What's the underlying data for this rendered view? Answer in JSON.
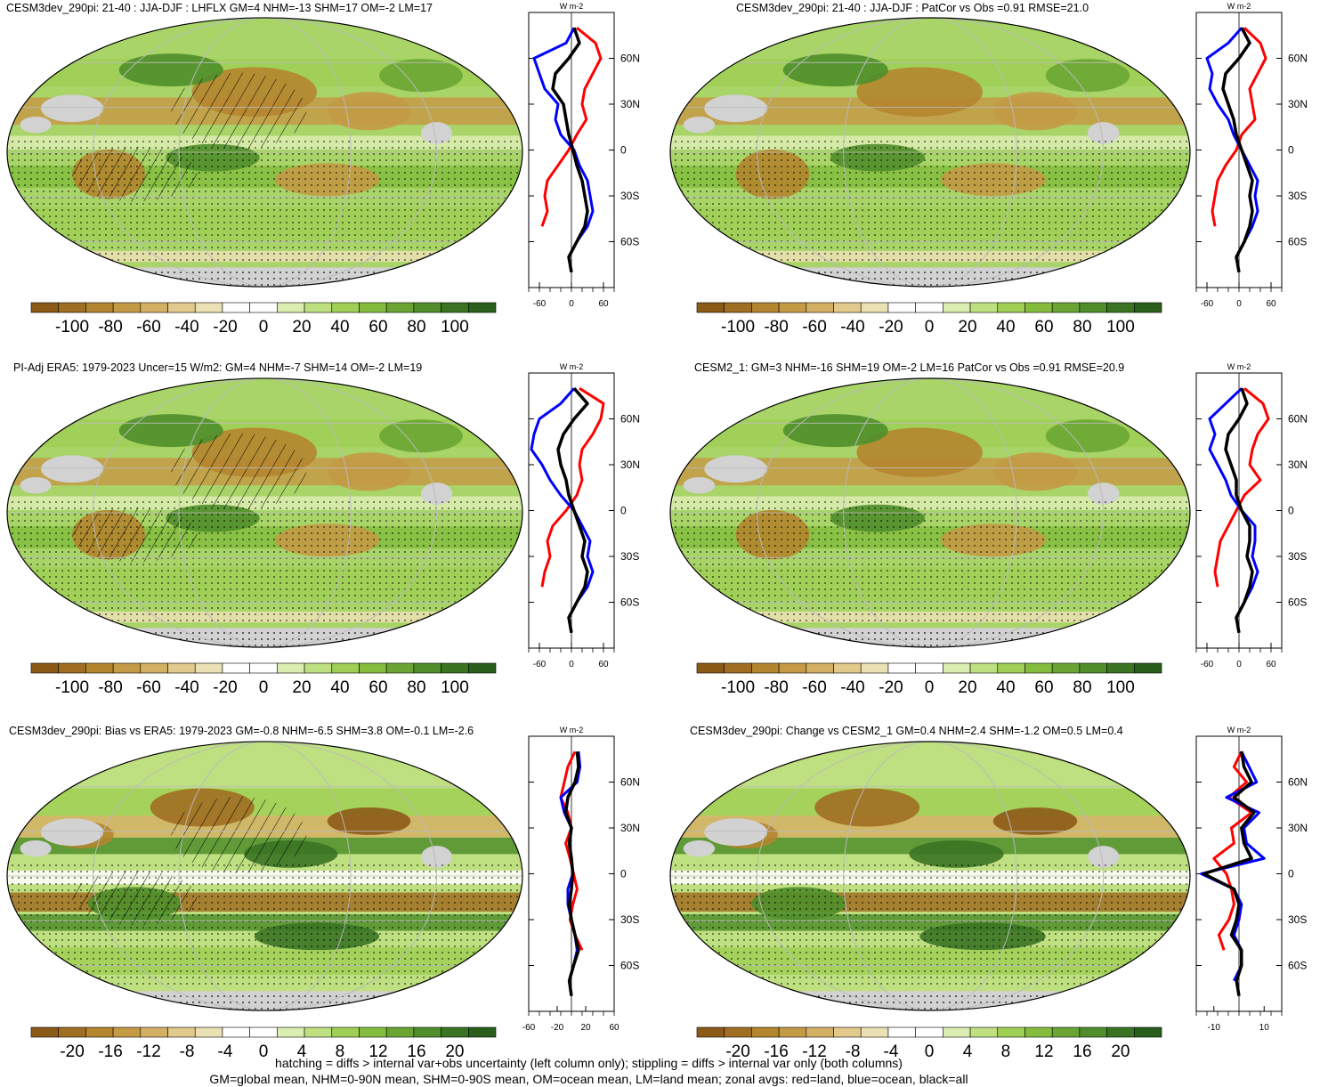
{
  "panels": [
    {
      "id": "p1",
      "title": "CESM3dev_290pi: 21-40 : JJA-DJF : LHFLX GM=4 NHM=-13 SHM=17 OM=-2 LM=17",
      "map_style": "field",
      "hatching": true,
      "colorbar_labels": [
        "-100",
        "-80",
        "-60",
        "-40",
        "-20",
        "0",
        "20",
        "40",
        "60",
        "80",
        "100"
      ]
    },
    {
      "id": "p2",
      "title": "CESM3dev_290pi: 21-40 : JJA-DJF : PatCor vs Obs =0.91 RMSE=21.0",
      "map_style": "field",
      "hatching": false,
      "colorbar_labels": [
        "-100",
        "-80",
        "-60",
        "-40",
        "-20",
        "0",
        "20",
        "40",
        "60",
        "80",
        "100"
      ]
    },
    {
      "id": "p3",
      "title": "PI-Adj ERA5: 1979-2023 Uncer=15 W/m2: GM=4 NHM=-7 SHM=14 OM=-2 LM=19",
      "map_style": "field",
      "hatching": true,
      "colorbar_labels": [
        "-100",
        "-80",
        "-60",
        "-40",
        "-20",
        "0",
        "20",
        "40",
        "60",
        "80",
        "100"
      ]
    },
    {
      "id": "p4",
      "title": "CESM2_1: GM=3 NHM=-16 SHM=19 OM=-2 LM=16 PatCor vs Obs =0.91 RMSE=20.9",
      "map_style": "field",
      "hatching": false,
      "colorbar_labels": [
        "-100",
        "-80",
        "-60",
        "-40",
        "-20",
        "0",
        "20",
        "40",
        "60",
        "80",
        "100"
      ]
    },
    {
      "id": "p5",
      "title": "CESM3dev_290pi: Bias vs ERA5: 1979-2023 GM=-0.8 NHM=-6.5 SHM=3.8 OM=-0.1 LM=-2.6",
      "map_style": "diff",
      "hatching": true,
      "colorbar_labels": [
        "-20",
        "-16",
        "-12",
        "-8",
        "-4",
        "0",
        "4",
        "8",
        "12",
        "16",
        "20"
      ]
    },
    {
      "id": "p6",
      "title": "CESM3dev_290pi: Change vs CESM2_1 GM=0.4 NHM=2.4 SHM=-1.2 OM=0.5 LM=0.4",
      "map_style": "diff",
      "hatching": false,
      "colorbar_labels": [
        "-20",
        "-16",
        "-12",
        "-8",
        "-4",
        "0",
        "4",
        "8",
        "12",
        "16",
        "20"
      ]
    }
  ],
  "colors": {
    "palette": [
      "#8c5a17",
      "#a06e22",
      "#b4852f",
      "#c49a45",
      "#d4b065",
      "#e2c98c",
      "#ece0b5",
      "#ffffff",
      "#ffffff",
      "#dcedb2",
      "#bfe080",
      "#9fcf55",
      "#84bd3e",
      "#6aa534",
      "#4f8e2b",
      "#3a7423",
      "#2a5e1c"
    ],
    "land": "#d2d2d2",
    "land_series": "#ff0000",
    "ocean_series": "#0000ff",
    "all_series": "#000000"
  },
  "chart_data": [
    {
      "type": "line",
      "panel": "p1",
      "units": "W m-2",
      "xlim": [
        -80,
        80
      ],
      "xticks": [
        "-60",
        "0",
        "60"
      ],
      "yticks": [
        "60N",
        "30N",
        "0",
        "30S",
        "60S"
      ],
      "latitudes": [
        80,
        70,
        60,
        50,
        40,
        30,
        20,
        10,
        0,
        -10,
        -20,
        -30,
        -40,
        -50,
        -60,
        -70,
        -80
      ],
      "series": [
        {
          "name": "land",
          "values": [
            10,
            45,
            55,
            40,
            25,
            20,
            28,
            10,
            -5,
            -25,
            -45,
            -50,
            -45,
            -55,
            null,
            -10,
            null
          ]
        },
        {
          "name": "ocean",
          "values": [
            5,
            -10,
            -70,
            -60,
            -50,
            -25,
            -30,
            -20,
            5,
            15,
            30,
            35,
            40,
            30,
            10,
            -5,
            null
          ]
        },
        {
          "name": "all",
          "values": [
            5,
            15,
            -5,
            -30,
            -35,
            -15,
            -10,
            -5,
            3,
            10,
            20,
            25,
            30,
            25,
            10,
            -5,
            0
          ]
        }
      ]
    },
    {
      "type": "line",
      "panel": "p2",
      "units": "W m-2",
      "xlim": [
        -80,
        80
      ],
      "xticks": [
        "-60",
        "0",
        "60"
      ],
      "yticks": [
        "60N",
        "30N",
        "0",
        "30S",
        "60S"
      ],
      "latitudes": [
        80,
        70,
        60,
        50,
        40,
        30,
        20,
        10,
        0,
        -10,
        -20,
        -30,
        -40,
        -50,
        -60,
        -70,
        -80
      ],
      "series": [
        {
          "name": "land",
          "values": [
            10,
            40,
            50,
            35,
            20,
            25,
            30,
            5,
            -5,
            -25,
            -40,
            -45,
            -50,
            -45,
            null,
            -10,
            null
          ]
        },
        {
          "name": "ocean",
          "values": [
            5,
            -20,
            -60,
            -50,
            -55,
            -40,
            -20,
            -10,
            5,
            20,
            35,
            30,
            35,
            25,
            10,
            -5,
            null
          ]
        },
        {
          "name": "all",
          "values": [
            5,
            20,
            0,
            -25,
            -30,
            -20,
            -10,
            -5,
            5,
            15,
            25,
            20,
            25,
            20,
            10,
            -5,
            0
          ]
        }
      ]
    },
    {
      "type": "line",
      "panel": "p3",
      "units": "W m-2",
      "xlim": [
        -80,
        80
      ],
      "xticks": [
        "-60",
        "0",
        "60"
      ],
      "yticks": [
        "60N",
        "30N",
        "0",
        "30S",
        "60S"
      ],
      "latitudes": [
        80,
        70,
        60,
        50,
        40,
        30,
        20,
        10,
        0,
        -10,
        -20,
        -30,
        -40,
        -50,
        -60,
        -70,
        -80
      ],
      "series": [
        {
          "name": "land",
          "values": [
            15,
            60,
            55,
            40,
            20,
            15,
            20,
            10,
            -10,
            -35,
            -45,
            -40,
            -50,
            -55,
            null,
            -10,
            null
          ]
        },
        {
          "name": "ocean",
          "values": [
            5,
            -20,
            -60,
            -70,
            -75,
            -55,
            -40,
            -20,
            5,
            20,
            35,
            30,
            40,
            30,
            10,
            -5,
            null
          ]
        },
        {
          "name": "all",
          "values": [
            5,
            30,
            5,
            -15,
            -25,
            -20,
            -10,
            -5,
            5,
            15,
            25,
            20,
            30,
            25,
            10,
            -5,
            0
          ]
        }
      ]
    },
    {
      "type": "line",
      "panel": "p4",
      "units": "W m-2",
      "xlim": [
        -80,
        80
      ],
      "xticks": [
        "-60",
        "0",
        "60"
      ],
      "yticks": [
        "60N",
        "30N",
        "0",
        "30S",
        "60S"
      ],
      "latitudes": [
        80,
        70,
        60,
        50,
        40,
        30,
        20,
        10,
        0,
        -10,
        -20,
        -30,
        -40,
        -50,
        -60,
        -70,
        -80
      ],
      "series": [
        {
          "name": "land",
          "values": [
            10,
            45,
            55,
            35,
            25,
            20,
            40,
            10,
            -5,
            -20,
            -35,
            -40,
            -45,
            -40,
            null,
            -10,
            null
          ]
        },
        {
          "name": "ocean",
          "values": [
            5,
            -25,
            -55,
            -45,
            -55,
            -40,
            -25,
            -15,
            5,
            30,
            30,
            25,
            35,
            25,
            10,
            -5,
            null
          ]
        },
        {
          "name": "all",
          "values": [
            5,
            15,
            0,
            -20,
            -25,
            -15,
            -5,
            -5,
            5,
            20,
            20,
            15,
            25,
            20,
            10,
            -5,
            0
          ]
        }
      ]
    },
    {
      "type": "line",
      "panel": "p5",
      "units": "W m-2",
      "xlim": [
        -60,
        60
      ],
      "xticks": [
        "-60",
        "-20",
        "20",
        "60"
      ],
      "yticks": [
        "60N",
        "30N",
        "0",
        "30S",
        "60S"
      ],
      "latitudes": [
        80,
        70,
        60,
        50,
        40,
        30,
        20,
        10,
        0,
        -10,
        -20,
        -30,
        -40,
        -50,
        -60,
        -70,
        -80
      ],
      "series": [
        {
          "name": "land",
          "values": [
            5,
            -5,
            -10,
            -15,
            -5,
            0,
            -8,
            -2,
            3,
            8,
            2,
            -2,
            5,
            15,
            null,
            -5,
            null
          ]
        },
        {
          "name": "ocean",
          "values": [
            10,
            12,
            8,
            -15,
            -10,
            0,
            -3,
            0,
            2,
            -5,
            -5,
            0,
            5,
            8,
            3,
            -3,
            null
          ]
        },
        {
          "name": "all",
          "values": [
            8,
            10,
            5,
            -5,
            -8,
            0,
            -3,
            0,
            2,
            0,
            -3,
            0,
            5,
            10,
            3,
            -3,
            0
          ]
        }
      ]
    },
    {
      "type": "line",
      "panel": "p6",
      "units": "W m-2",
      "xlim": [
        -17,
        17
      ],
      "xticks": [
        "-10",
        "10"
      ],
      "yticks": [
        "60N",
        "30N",
        "0",
        "30S",
        "60S"
      ],
      "latitudes": [
        80,
        70,
        60,
        50,
        40,
        30,
        20,
        10,
        0,
        -10,
        -20,
        -30,
        -40,
        -50,
        -60,
        -70,
        -80
      ],
      "series": [
        {
          "name": "land",
          "values": [
            1,
            -2,
            3,
            -4,
            5,
            -3,
            -2,
            -10,
            -5,
            -3,
            -2,
            -4,
            -8,
            -6,
            null,
            -1,
            null
          ]
        },
        {
          "name": "ocean",
          "values": [
            1,
            4,
            7,
            -5,
            8,
            2,
            3,
            10,
            -15,
            -2,
            1,
            0,
            -2,
            1,
            1,
            -2,
            null
          ]
        },
        {
          "name": "all",
          "values": [
            1,
            2,
            5,
            -2,
            6,
            1,
            2,
            5,
            -14,
            -2,
            0,
            -1,
            -3,
            1,
            1,
            -1,
            0
          ]
        }
      ]
    }
  ],
  "footer": {
    "line1": "hatching = diffs > internal var+obs uncertainty (left column only); stippling = diffs > internal var only (both columns)",
    "line2": "GM=global mean, NHM=0-90N mean, SHM=0-90S mean, OM=ocean mean, LM=land mean; zonal avgs: red=land, blue=ocean, black=all"
  }
}
